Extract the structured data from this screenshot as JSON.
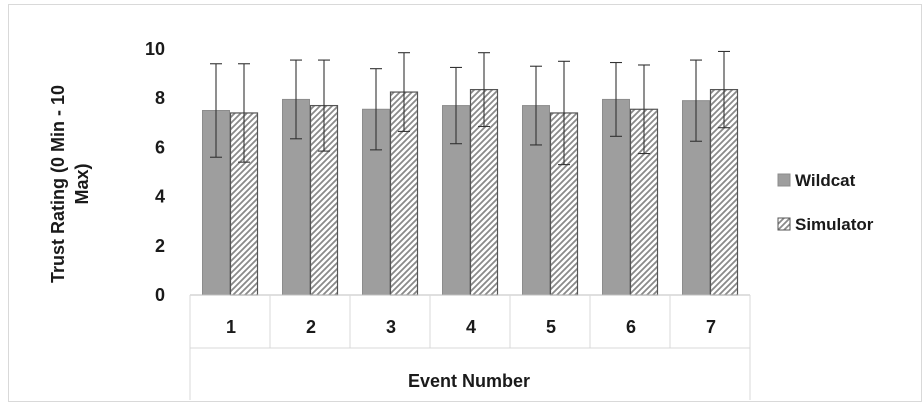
{
  "chart_data": {
    "type": "bar",
    "title": "",
    "xlabel": "Event Number",
    "ylabel_lines": [
      "Trust Rating (0 Min - 10",
      "Max)"
    ],
    "categories": [
      "1",
      "2",
      "3",
      "4",
      "5",
      "6",
      "7"
    ],
    "ylim": [
      0,
      10
    ],
    "yticks": [
      "0",
      "2",
      "4",
      "6",
      "8",
      "10"
    ],
    "grid": false,
    "legend_position": "right",
    "series": [
      {
        "name": "Wildcat",
        "fill": "#9e9e9e",
        "pattern": "solid",
        "values": [
          7.5,
          7.95,
          7.55,
          7.7,
          7.7,
          7.95,
          7.9
        ],
        "error": [
          1.9,
          1.6,
          1.65,
          1.55,
          1.6,
          1.5,
          1.65
        ]
      },
      {
        "name": "Simulator",
        "fill": "#ffffff",
        "pattern": "diagonal-hatch",
        "values": [
          7.4,
          7.7,
          8.25,
          8.35,
          7.4,
          7.55,
          8.35
        ],
        "error": [
          2.0,
          1.85,
          1.6,
          1.5,
          2.1,
          1.8,
          1.55
        ]
      }
    ]
  }
}
